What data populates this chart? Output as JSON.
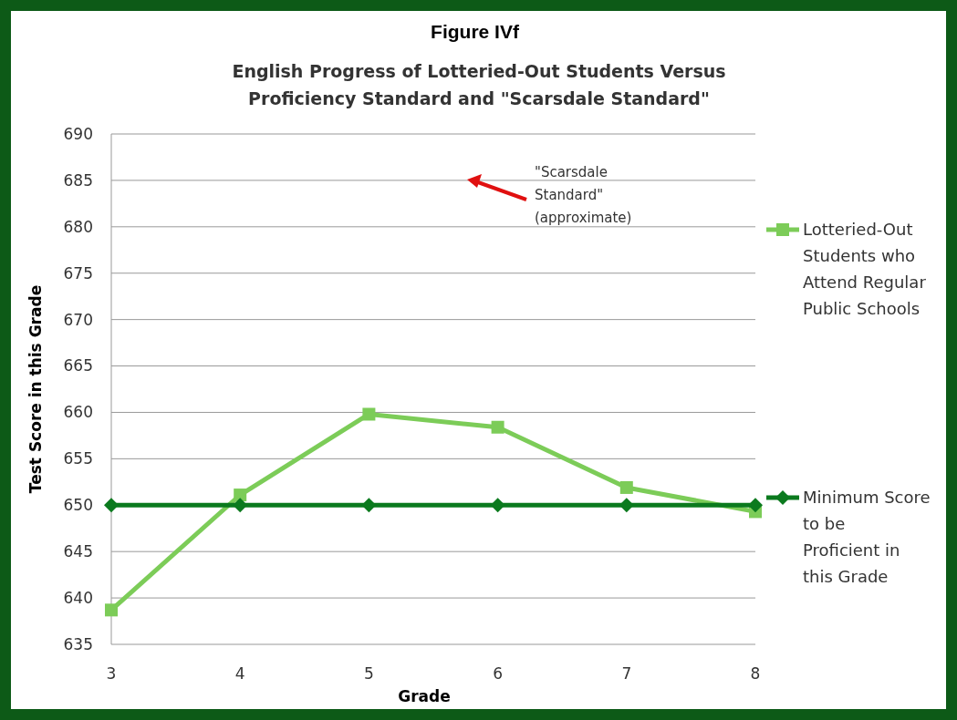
{
  "chart_data": {
    "type": "line",
    "title": "Figure IVf",
    "subtitle": "English Progress of Lotteried-Out Students Versus Proficiency Standard and \"Scarsdale Standard\"",
    "xlabel": "Grade",
    "ylabel": "Test Score in this Grade",
    "x": [
      3,
      4,
      5,
      6,
      7,
      8
    ],
    "series": [
      {
        "name": "Lotteried-Out Students who Attend Regular Public Schools",
        "color": "#7ccc58",
        "marker": "square",
        "values": [
          638.7,
          651.1,
          659.8,
          658.4,
          651.9,
          649.3
        ]
      },
      {
        "name": "Minimum Score to be Proficient in this Grade",
        "color": "#0b7a1e",
        "marker": "diamond",
        "values": [
          650,
          650,
          650,
          650,
          650,
          650
        ]
      }
    ],
    "xlim": [
      3,
      8
    ],
    "xticks": [
      3,
      4,
      5,
      6,
      7,
      8
    ],
    "ylim": [
      635,
      690
    ],
    "yticks": [
      635,
      640,
      645,
      650,
      655,
      660,
      665,
      670,
      675,
      680,
      685,
      690
    ],
    "grid": "y",
    "legend": "right",
    "line_style": "solid",
    "annotations": [
      "\"Scarsdale Standard\" (approximate)"
    ]
  }
}
